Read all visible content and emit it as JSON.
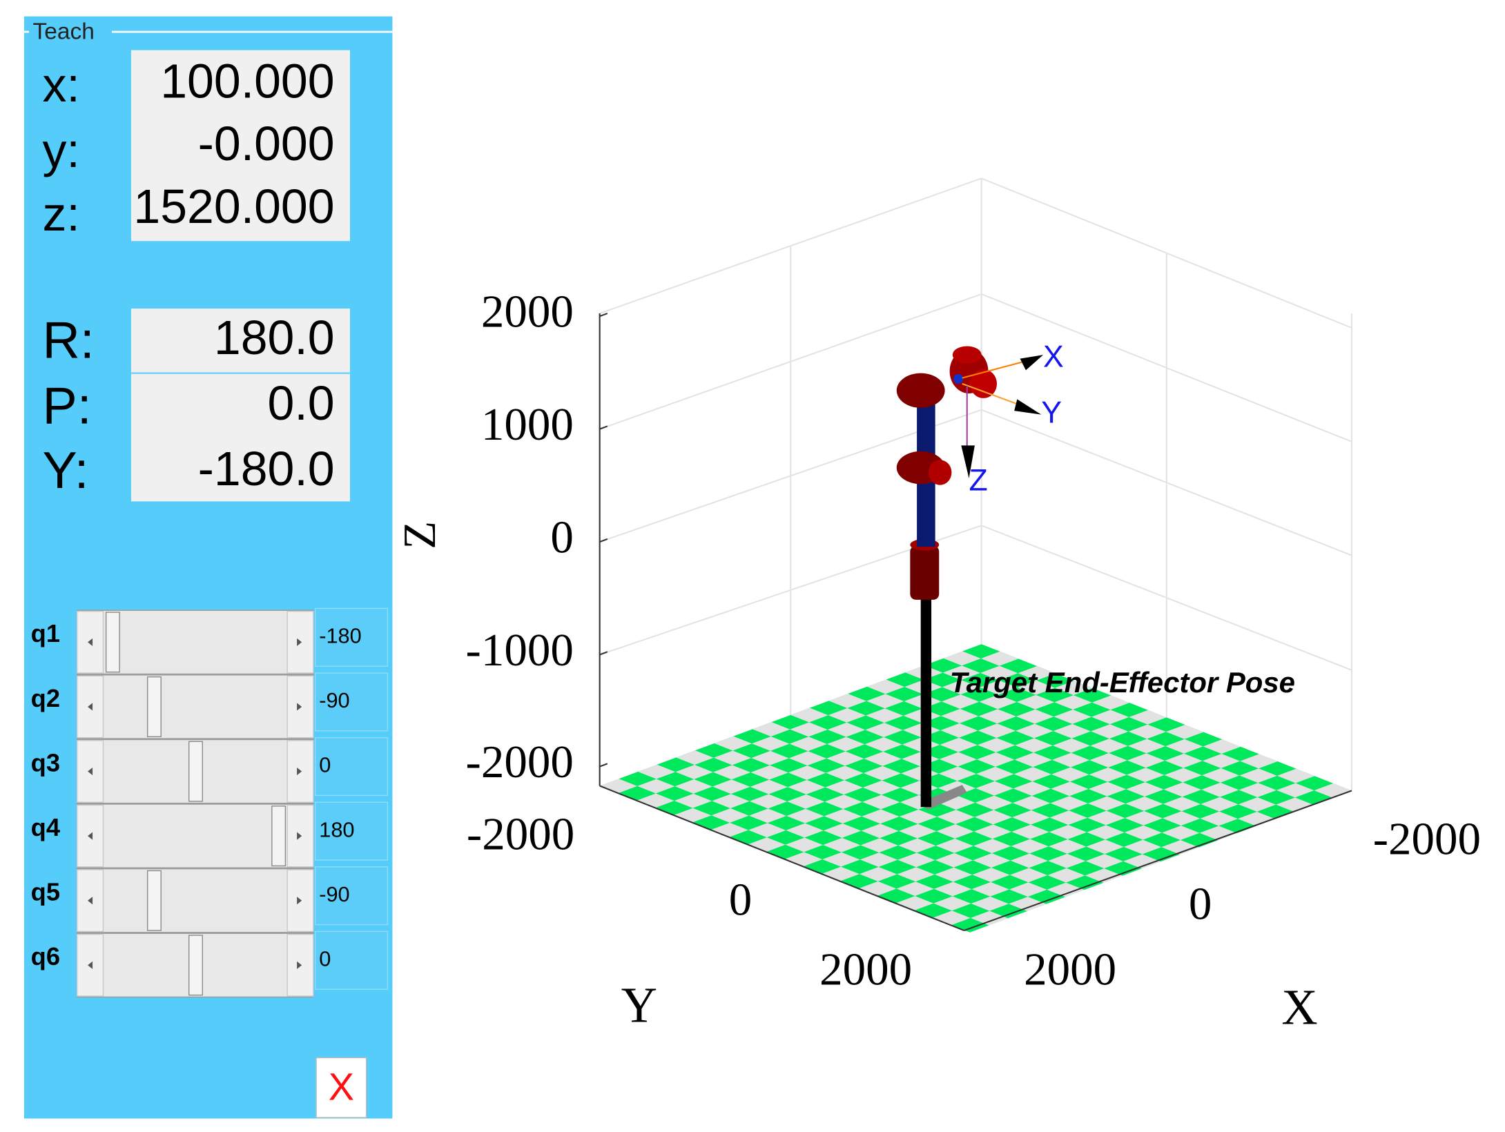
{
  "panel": {
    "title": "Teach",
    "position": [
      {
        "label": "x:",
        "value": "100.000"
      },
      {
        "label": "y:",
        "value": "-0.000"
      },
      {
        "label": "z:",
        "value": "1520.000"
      }
    ],
    "orientation": [
      {
        "label": "R:",
        "value": "180.0"
      },
      {
        "label": "P:",
        "value": "0.0"
      },
      {
        "label": "Y:",
        "value": "-180.0"
      }
    ],
    "joints": [
      {
        "label": "q1",
        "value": "-180"
      },
      {
        "label": "q2",
        "value": "-90"
      },
      {
        "label": "q3",
        "value": "0"
      },
      {
        "label": "q4",
        "value": "180"
      },
      {
        "label": "q5",
        "value": "-90"
      },
      {
        "label": "q6",
        "value": "0"
      }
    ],
    "close": "X"
  },
  "plot": {
    "zlabel": "Z",
    "zticks": [
      "2000",
      "1000",
      "0",
      "-1000",
      "-2000"
    ],
    "ylabel": "Y",
    "yticks": [
      "-2000",
      "0",
      "2000"
    ],
    "xlabel": "X",
    "xticks": [
      "-2000",
      "0",
      "2000"
    ],
    "frame_labels": [
      "X",
      "Y",
      "Z"
    ],
    "robot_name": "Target End-Effector Pose"
  }
}
